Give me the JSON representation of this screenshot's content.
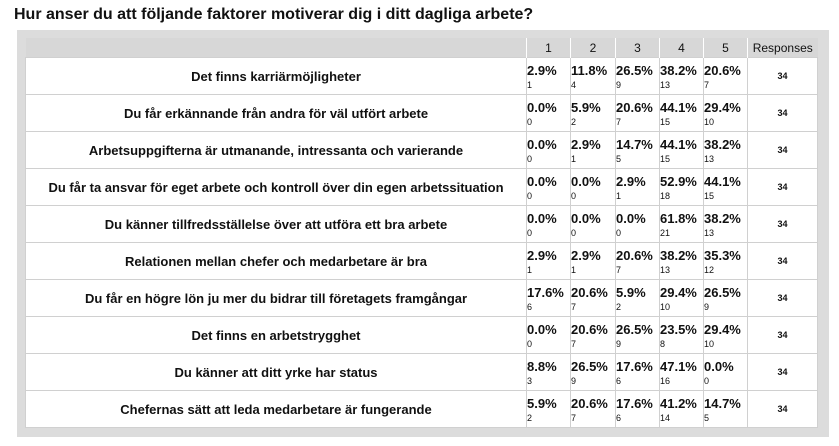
{
  "title": "Hur anser du att följande faktorer motiverar dig i ditt dagliga arbete?",
  "columns": [
    "1",
    "2",
    "3",
    "4",
    "5",
    "Responses"
  ],
  "rows": [
    {
      "label": "Det finns karriärmöjligheter",
      "cells": [
        {
          "pct": "2.9%",
          "n": "1"
        },
        {
          "pct": "11.8%",
          "n": "4"
        },
        {
          "pct": "26.5%",
          "n": "9"
        },
        {
          "pct": "38.2%",
          "n": "13"
        },
        {
          "pct": "20.6%",
          "n": "7"
        }
      ],
      "responses": "34"
    },
    {
      "label": "Du får erkännande från andra för väl utfört arbete",
      "cells": [
        {
          "pct": "0.0%",
          "n": "0"
        },
        {
          "pct": "5.9%",
          "n": "2"
        },
        {
          "pct": "20.6%",
          "n": "7"
        },
        {
          "pct": "44.1%",
          "n": "15"
        },
        {
          "pct": "29.4%",
          "n": "10"
        }
      ],
      "responses": "34"
    },
    {
      "label": "Arbetsuppgifterna är utmanande, intressanta och varierande",
      "cells": [
        {
          "pct": "0.0%",
          "n": "0"
        },
        {
          "pct": "2.9%",
          "n": "1"
        },
        {
          "pct": "14.7%",
          "n": "5"
        },
        {
          "pct": "44.1%",
          "n": "15"
        },
        {
          "pct": "38.2%",
          "n": "13"
        }
      ],
      "responses": "34"
    },
    {
      "label": "Du får ta ansvar för eget arbete och kontroll över din egen arbetssituation",
      "cells": [
        {
          "pct": "0.0%",
          "n": "0"
        },
        {
          "pct": "0.0%",
          "n": "0"
        },
        {
          "pct": "2.9%",
          "n": "1"
        },
        {
          "pct": "52.9%",
          "n": "18"
        },
        {
          "pct": "44.1%",
          "n": "15"
        }
      ],
      "responses": "34"
    },
    {
      "label": "Du känner tillfredsställelse över att utföra ett bra arbete",
      "cells": [
        {
          "pct": "0.0%",
          "n": "0"
        },
        {
          "pct": "0.0%",
          "n": "0"
        },
        {
          "pct": "0.0%",
          "n": "0"
        },
        {
          "pct": "61.8%",
          "n": "21"
        },
        {
          "pct": "38.2%",
          "n": "13"
        }
      ],
      "responses": "34"
    },
    {
      "label": "Relationen mellan chefer och medarbetare är bra",
      "cells": [
        {
          "pct": "2.9%",
          "n": "1"
        },
        {
          "pct": "2.9%",
          "n": "1"
        },
        {
          "pct": "20.6%",
          "n": "7"
        },
        {
          "pct": "38.2%",
          "n": "13"
        },
        {
          "pct": "35.3%",
          "n": "12"
        }
      ],
      "responses": "34"
    },
    {
      "label": "Du får en högre lön ju mer du bidrar till företagets framgångar",
      "cells": [
        {
          "pct": "17.6%",
          "n": "6"
        },
        {
          "pct": "20.6%",
          "n": "7"
        },
        {
          "pct": "5.9%",
          "n": "2"
        },
        {
          "pct": "29.4%",
          "n": "10"
        },
        {
          "pct": "26.5%",
          "n": "9"
        }
      ],
      "responses": "34"
    },
    {
      "label": "Det finns en arbetstrygghet",
      "cells": [
        {
          "pct": "0.0%",
          "n": "0"
        },
        {
          "pct": "20.6%",
          "n": "7"
        },
        {
          "pct": "26.5%",
          "n": "9"
        },
        {
          "pct": "23.5%",
          "n": "8"
        },
        {
          "pct": "29.4%",
          "n": "10"
        }
      ],
      "responses": "34"
    },
    {
      "label": "Du känner att ditt yrke har status",
      "cells": [
        {
          "pct": "8.8%",
          "n": "3"
        },
        {
          "pct": "26.5%",
          "n": "9"
        },
        {
          "pct": "17.6%",
          "n": "6"
        },
        {
          "pct": "47.1%",
          "n": "16"
        },
        {
          "pct": "0.0%",
          "n": "0"
        }
      ],
      "responses": "34"
    },
    {
      "label": "Chefernas sätt att leda medarbetare är fungerande",
      "cells": [
        {
          "pct": "5.9%",
          "n": "2"
        },
        {
          "pct": "20.6%",
          "n": "7"
        },
        {
          "pct": "17.6%",
          "n": "6"
        },
        {
          "pct": "41.2%",
          "n": "14"
        },
        {
          "pct": "14.7%",
          "n": "5"
        }
      ],
      "responses": "34"
    }
  ]
}
